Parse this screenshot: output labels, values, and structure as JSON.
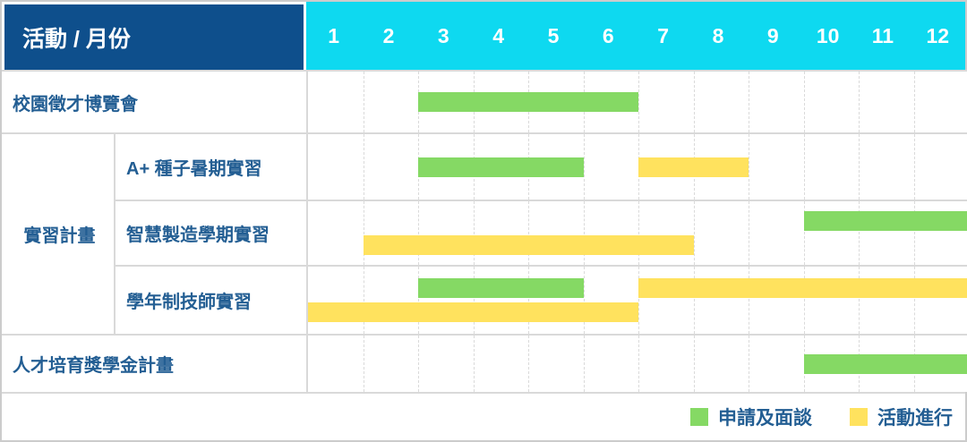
{
  "header": {
    "title": "活動 / 月份",
    "months": [
      "1",
      "2",
      "3",
      "4",
      "5",
      "6",
      "7",
      "8",
      "9",
      "10",
      "11",
      "12"
    ]
  },
  "legend": [
    {
      "key": "apply",
      "label": "申請及面談",
      "color": "#85D964"
    },
    {
      "key": "ongoing",
      "label": "活動進行",
      "color": "#FFE25E"
    }
  ],
  "colors": {
    "apply": "#85D964",
    "ongoing": "#FFE25E",
    "header_navy": "#0E4F8C",
    "header_cyan": "#0ED9F0",
    "label_text": "#235E93",
    "grid_line": "#D9D9D9"
  },
  "chart_data": {
    "type": "gantt",
    "x_unit": "month",
    "x_range": [
      1,
      12
    ],
    "title": "活動 / 月份",
    "legend_entries": [
      {
        "label": "申請及面談",
        "color": "#85D964"
      },
      {
        "label": "活動進行",
        "color": "#FFE25E"
      }
    ],
    "rows": [
      {
        "group": null,
        "label": "校園徵才博覽會",
        "lanes": [
          [
            {
              "type": "apply",
              "start": 3,
              "end": 6
            }
          ]
        ]
      },
      {
        "group": "實習計畫",
        "label": "A+ 種子暑期實習",
        "lanes": [
          [
            {
              "type": "apply",
              "start": 3,
              "end": 5
            },
            {
              "type": "ongoing",
              "start": 7,
              "end": 8
            }
          ]
        ]
      },
      {
        "group": "實習計畫",
        "label": "智慧製造學期實習",
        "lanes": [
          [
            {
              "type": "apply",
              "start": 10,
              "end": 12
            }
          ],
          [
            {
              "type": "ongoing",
              "start": 2,
              "end": 7
            }
          ]
        ]
      },
      {
        "group": "實習計畫",
        "label": "學年制技師實習",
        "lanes": [
          [
            {
              "type": "apply",
              "start": 3,
              "end": 5
            },
            {
              "type": "ongoing",
              "start": 7,
              "end": 12
            }
          ],
          [
            {
              "type": "ongoing",
              "start": 1,
              "end": 6
            }
          ]
        ]
      },
      {
        "group": null,
        "label": "人才培育獎學金計畫",
        "lanes": [
          [
            {
              "type": "apply",
              "start": 10,
              "end": 12
            }
          ]
        ]
      }
    ]
  }
}
